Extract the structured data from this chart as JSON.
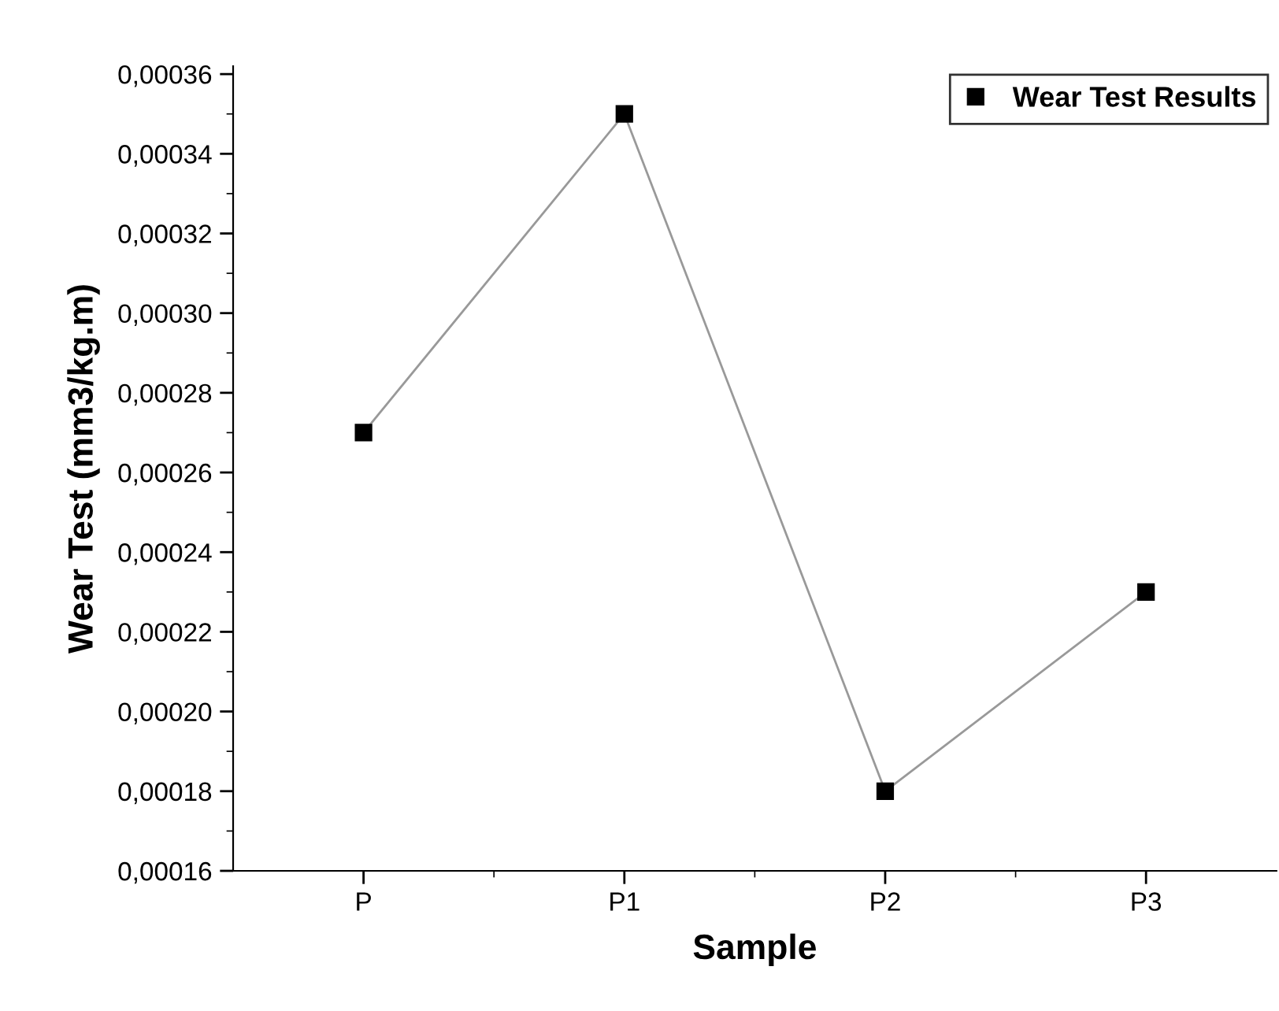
{
  "chart_data": {
    "type": "line",
    "xlabel": "Sample",
    "ylabel": "Wear Test (mm3/kg.m)",
    "categories": [
      "P",
      "P1",
      "P2",
      "P3"
    ],
    "series": [
      {
        "name": "Wear Test Results",
        "color": "#000000",
        "values": [
          0.00027,
          0.00035,
          0.00018,
          0.00023
        ]
      }
    ],
    "marker": "square",
    "line_style": "solid",
    "legend": "top right",
    "grid": false,
    "ylim": [
      0.00016,
      0.000362
    ],
    "yticks": [
      {
        "value": 0.00016,
        "label": "0,00016"
      },
      {
        "value": 0.00018,
        "label": "0,00018"
      },
      {
        "value": 0.0002,
        "label": "0,00020"
      },
      {
        "value": 0.00022,
        "label": "0,00022"
      },
      {
        "value": 0.00024,
        "label": "0,00024"
      },
      {
        "value": 0.00026,
        "label": "0,00026"
      },
      {
        "value": 0.00028,
        "label": "0,00028"
      },
      {
        "value": 0.0003,
        "label": "0,00030"
      },
      {
        "value": 0.00032,
        "label": "0,00032"
      },
      {
        "value": 0.00034,
        "label": "0,00034"
      },
      {
        "value": 0.00036,
        "label": "0,00036"
      }
    ]
  }
}
